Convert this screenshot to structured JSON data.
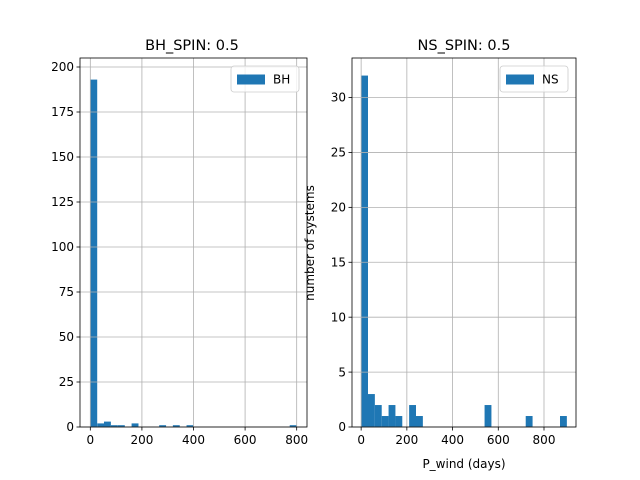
{
  "colors": {
    "bar": "#1f77b4",
    "grid": "#b0b0b0"
  },
  "chart_data": [
    {
      "type": "bar",
      "title": "BH_SPIN: 0.5",
      "xlabel": "",
      "ylabel": "",
      "xlim": [
        -40,
        840
      ],
      "ylim": [
        0,
        205
      ],
      "xticks": [
        0,
        200,
        400,
        600,
        800
      ],
      "yticks": [
        0,
        25,
        50,
        75,
        100,
        125,
        150,
        175,
        200
      ],
      "grid": true,
      "legend": {
        "label": "BH",
        "loc": "upper right"
      },
      "bin_width": 26.7,
      "series": [
        {
          "name": "BH",
          "bars": [
            {
              "x": 0,
              "value": 193
            },
            {
              "x": 27,
              "value": 2
            },
            {
              "x": 53,
              "value": 3
            },
            {
              "x": 80,
              "value": 1
            },
            {
              "x": 107,
              "value": 1
            },
            {
              "x": 160,
              "value": 2
            },
            {
              "x": 267,
              "value": 1
            },
            {
              "x": 320,
              "value": 1
            },
            {
              "x": 373,
              "value": 1
            },
            {
              "x": 773,
              "value": 1
            }
          ]
        }
      ]
    },
    {
      "type": "bar",
      "title": "NS_SPIN: 0.5",
      "xlabel": "P_wind (days)",
      "ylabel": "number of systems",
      "xlim": [
        -40,
        940
      ],
      "ylim": [
        0,
        33.6
      ],
      "xticks": [
        0,
        200,
        400,
        600,
        800
      ],
      "yticks": [
        0,
        5,
        10,
        15,
        20,
        25,
        30
      ],
      "grid": true,
      "legend": {
        "label": "NS",
        "loc": "upper right"
      },
      "bin_width": 30,
      "series": [
        {
          "name": "NS",
          "bars": [
            {
              "x": 0,
              "value": 32
            },
            {
              "x": 30,
              "value": 3
            },
            {
              "x": 60,
              "value": 2
            },
            {
              "x": 90,
              "value": 1
            },
            {
              "x": 120,
              "value": 2
            },
            {
              "x": 150,
              "value": 1
            },
            {
              "x": 210,
              "value": 2
            },
            {
              "x": 240,
              "value": 1
            },
            {
              "x": 540,
              "value": 2
            },
            {
              "x": 720,
              "value": 1
            },
            {
              "x": 870,
              "value": 1
            }
          ]
        }
      ]
    }
  ]
}
